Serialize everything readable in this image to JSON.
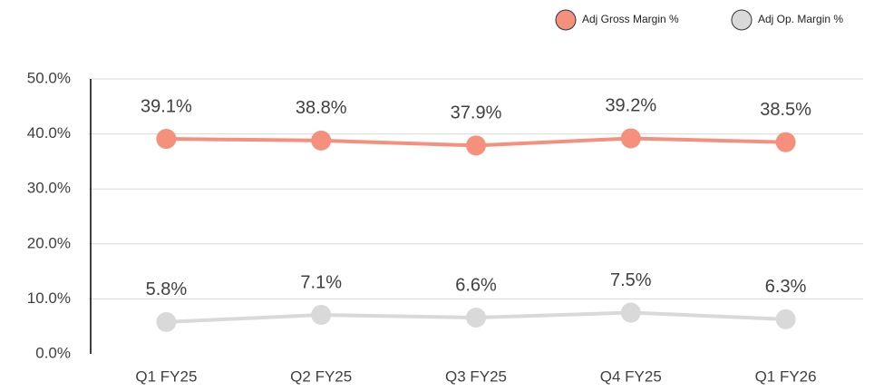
{
  "chart_data": {
    "type": "line",
    "categories": [
      "Q1 FY25",
      "Q2 FY25",
      "Q3 FY25",
      "Q4 FY25",
      "Q1 FY26"
    ],
    "series": [
      {
        "name": "Adj Gross Margin %",
        "color": "#f4907c",
        "values": [
          39.1,
          38.8,
          37.9,
          39.2,
          38.5
        ],
        "value_labels": [
          "39.1%",
          "38.8%",
          "37.9%",
          "39.2%",
          "38.5%"
        ]
      },
      {
        "name": "Adj Op. Margin %",
        "color": "#d9d9d9",
        "values": [
          5.8,
          7.1,
          6.6,
          7.5,
          6.3
        ],
        "value_labels": [
          "5.8%",
          "7.1%",
          "6.6%",
          "7.5%",
          "6.3%"
        ]
      }
    ],
    "ylim": [
      0,
      50
    ],
    "yticks": [
      {
        "value": 0,
        "label": "0.0%"
      },
      {
        "value": 10,
        "label": "10.0%"
      },
      {
        "value": 20,
        "label": "20.0%"
      },
      {
        "value": 30,
        "label": "30.0%"
      },
      {
        "value": 40,
        "label": "40.0%"
      },
      {
        "value": 50,
        "label": "50.0%"
      }
    ],
    "grid": true,
    "legend": "top-right"
  }
}
